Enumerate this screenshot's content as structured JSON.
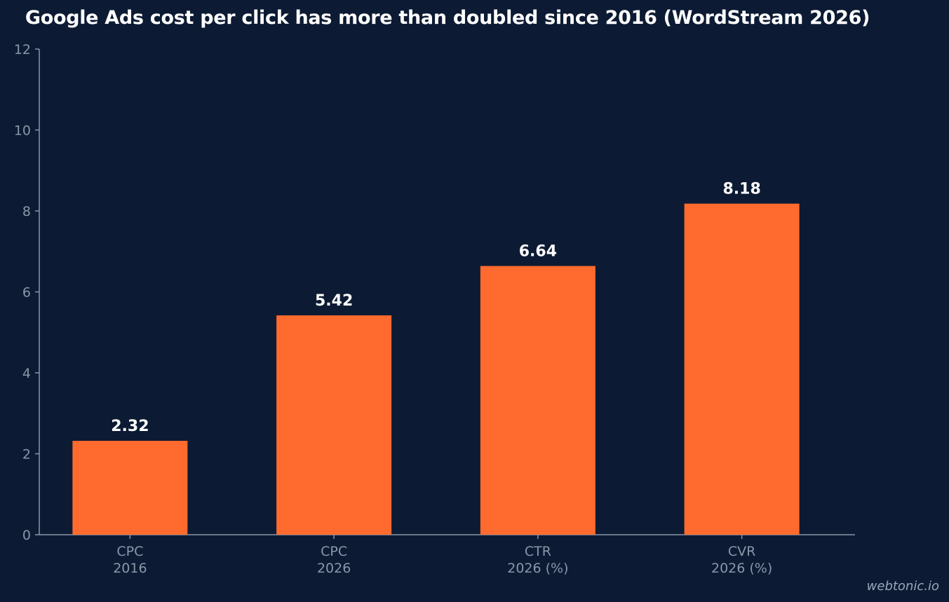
{
  "chart_data": {
    "type": "bar",
    "title": "Google Ads cost per click has more than doubled since 2016 (WordStream 2026)",
    "categories": [
      [
        "CPC",
        "2016"
      ],
      [
        "CPC",
        "2026"
      ],
      [
        "CTR",
        "2026 (%)"
      ],
      [
        "CVR",
        "2026 (%)"
      ]
    ],
    "values": [
      2.32,
      5.42,
      6.64,
      8.18
    ],
    "value_labels": [
      "2.32",
      "5.42",
      "6.64",
      "8.18"
    ],
    "y_ticks": [
      "0",
      "2",
      "4",
      "6",
      "8",
      "10",
      "12"
    ],
    "ylim": [
      0,
      12
    ],
    "xlabel": "",
    "ylabel": "",
    "grid": false,
    "colors": {
      "background": "#0c1b33",
      "bar": "#ff6b2e",
      "axis": "#8a96a8",
      "tick_label": "#8a96a8",
      "value_label": "#ffffff",
      "title": "#ffffff"
    }
  },
  "watermark": "webtonic.io"
}
